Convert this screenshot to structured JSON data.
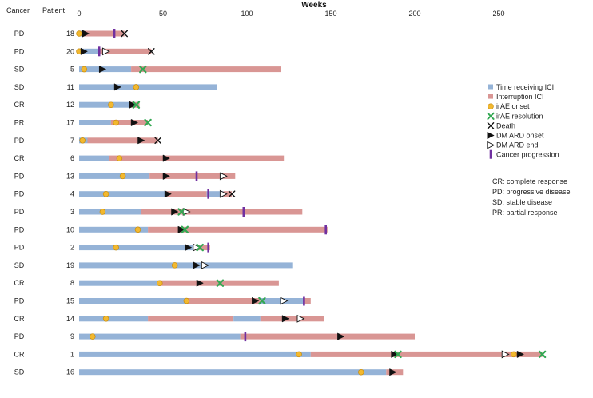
{
  "chart_data": {
    "type": "bar",
    "title": "Weeks",
    "col_cancer": "Cancer",
    "col_patient": "Patient",
    "xlim": [
      0,
      300
    ],
    "xticks": [
      0,
      50,
      100,
      150,
      200,
      250
    ],
    "colors": {
      "ici": "#95b3d7",
      "interruption": "#d99694",
      "irae_onset": "#f2b82f",
      "irae_onset_edge": "#c98c0a",
      "irae_resolution": "#33a853",
      "death": "#111111",
      "dmard": "#111111",
      "progression": "#7030a0"
    },
    "legend": {
      "position": "right",
      "items": [
        {
          "key": "ici",
          "label": "Time receiving ICI"
        },
        {
          "key": "interruption",
          "label": "Interruption ICI"
        },
        {
          "key": "irae_onset",
          "label": "irAE onset"
        },
        {
          "key": "irae_resolution",
          "label": "irAE resolution"
        },
        {
          "key": "death",
          "label": "Death"
        },
        {
          "key": "dmard_onset",
          "label": "DM ARD onset"
        },
        {
          "key": "dmard_end",
          "label": "DM ARD end"
        },
        {
          "key": "progression",
          "label": "Cancer progression"
        }
      ]
    },
    "abbreviations": [
      "CR: complete response",
      "PD: progressive disease",
      "SD: stable disease",
      "PR: partial response"
    ],
    "patients": [
      {
        "cancer": "PD",
        "patient": "18",
        "segments": [
          [
            "ici",
            0,
            3
          ],
          [
            "int",
            3,
            27
          ]
        ],
        "irae_onset": [
          0
        ],
        "irae_resolution": [],
        "dmard_onset": [
          4
        ],
        "dmard_end": [],
        "progression": [
          21
        ],
        "death": [
          27
        ]
      },
      {
        "cancer": "PD",
        "patient": "20",
        "segments": [
          [
            "ici",
            0,
            3
          ],
          [
            "ici",
            3,
            12
          ],
          [
            "int",
            12,
            43
          ]
        ],
        "irae_onset": [
          0
        ],
        "irae_resolution": [],
        "dmard_onset": [
          3
        ],
        "dmard_end": [
          16
        ],
        "progression": [
          12
        ],
        "death": [
          43
        ]
      },
      {
        "cancer": "SD",
        "patient": "5",
        "segments": [
          [
            "ici",
            0,
            31
          ],
          [
            "int",
            31,
            120
          ]
        ],
        "irae_onset": [
          3
        ],
        "irae_resolution": [
          38
        ],
        "dmard_onset": [
          14
        ],
        "dmard_end": [],
        "progression": [],
        "death": []
      },
      {
        "cancer": "SD",
        "patient": "11",
        "segments": [
          [
            "ici",
            0,
            82
          ]
        ],
        "irae_onset": [
          34
        ],
        "irae_resolution": [],
        "dmard_onset": [
          23
        ],
        "dmard_end": [],
        "progression": [],
        "death": []
      },
      {
        "cancer": "CR",
        "patient": "12",
        "segments": [
          [
            "ici",
            0,
            30
          ],
          [
            "int",
            30,
            36
          ]
        ],
        "irae_onset": [
          19
        ],
        "irae_resolution": [
          34
        ],
        "dmard_onset": [
          32
        ],
        "dmard_end": [],
        "progression": [],
        "death": []
      },
      {
        "cancer": "PR",
        "patient": "17",
        "segments": [
          [
            "ici",
            0,
            19
          ],
          [
            "int",
            19,
            41
          ]
        ],
        "irae_onset": [
          22
        ],
        "irae_resolution": [
          41
        ],
        "dmard_onset": [
          33
        ],
        "dmard_end": [],
        "progression": [],
        "death": []
      },
      {
        "cancer": "PD",
        "patient": "7",
        "segments": [
          [
            "ici",
            0,
            5
          ],
          [
            "int",
            5,
            47
          ]
        ],
        "irae_onset": [
          2
        ],
        "irae_resolution": [],
        "dmard_onset": [
          37
        ],
        "dmard_end": [],
        "progression": [],
        "death": [
          47
        ]
      },
      {
        "cancer": "CR",
        "patient": "6",
        "segments": [
          [
            "ici",
            0,
            18
          ],
          [
            "int",
            18,
            122
          ]
        ],
        "irae_onset": [
          24
        ],
        "irae_resolution": [],
        "dmard_onset": [
          52
        ],
        "dmard_end": [],
        "progression": [],
        "death": []
      },
      {
        "cancer": "PD",
        "patient": "13",
        "segments": [
          [
            "ici",
            0,
            42
          ],
          [
            "int",
            42,
            93
          ]
        ],
        "irae_onset": [
          26
        ],
        "irae_resolution": [],
        "dmard_onset": [
          52
        ],
        "dmard_end": [
          86
        ],
        "progression": [
          70
        ],
        "death": []
      },
      {
        "cancer": "PD",
        "patient": "4",
        "segments": [
          [
            "ici",
            0,
            51
          ],
          [
            "int",
            51,
            76
          ],
          [
            "ici",
            76,
            86
          ],
          [
            "int",
            86,
            91
          ]
        ],
        "irae_onset": [
          16
        ],
        "irae_resolution": [],
        "dmard_onset": [
          53
        ],
        "dmard_end": [
          86
        ],
        "progression": [
          77
        ],
        "death": [
          91
        ]
      },
      {
        "cancer": "PD",
        "patient": "3",
        "segments": [
          [
            "ici",
            0,
            37
          ],
          [
            "int",
            37,
            133
          ]
        ],
        "irae_onset": [
          14
        ],
        "irae_resolution": [
          61
        ],
        "dmard_onset": [
          57
        ],
        "dmard_end": [
          64
        ],
        "progression": [
          98
        ],
        "death": []
      },
      {
        "cancer": "PD",
        "patient": "10",
        "segments": [
          [
            "ici",
            0,
            41
          ],
          [
            "int",
            41,
            148
          ]
        ],
        "irae_onset": [
          35
        ],
        "irae_resolution": [
          63
        ],
        "dmard_onset": [
          61
        ],
        "dmard_end": [],
        "progression": [
          147
        ],
        "death": []
      },
      {
        "cancer": "PD",
        "patient": "2",
        "segments": [
          [
            "ici",
            0,
            69
          ],
          [
            "int",
            69,
            78
          ]
        ],
        "irae_onset": [
          22
        ],
        "irae_resolution": [
          72
        ],
        "dmard_onset": [
          65
        ],
        "dmard_end": [
          70
        ],
        "progression": [
          77
        ],
        "death": []
      },
      {
        "cancer": "SD",
        "patient": "19",
        "segments": [
          [
            "ici",
            0,
            127
          ]
        ],
        "irae_onset": [
          57
        ],
        "irae_resolution": [],
        "dmard_onset": [
          70
        ],
        "dmard_end": [
          75
        ],
        "progression": [],
        "death": []
      },
      {
        "cancer": "CR",
        "patient": "8",
        "segments": [
          [
            "ici",
            0,
            49
          ],
          [
            "int",
            49,
            119
          ]
        ],
        "irae_onset": [
          48
        ],
        "irae_resolution": [
          84
        ],
        "dmard_onset": [
          72
        ],
        "dmard_end": [],
        "progression": [],
        "death": []
      },
      {
        "cancer": "PD",
        "patient": "15",
        "segments": [
          [
            "ici",
            0,
            65
          ],
          [
            "int",
            65,
            108
          ],
          [
            "ici",
            108,
            134
          ],
          [
            "int",
            134,
            138
          ]
        ],
        "irae_onset": [
          64
        ],
        "irae_resolution": [
          109
        ],
        "dmard_onset": [
          105
        ],
        "dmard_end": [
          122
        ],
        "progression": [
          134
        ],
        "death": []
      },
      {
        "cancer": "CR",
        "patient": "14",
        "segments": [
          [
            "ici",
            0,
            41
          ],
          [
            "int",
            41,
            92
          ],
          [
            "ici",
            92,
            108
          ],
          [
            "int",
            108,
            146
          ]
        ],
        "irae_onset": [
          16
        ],
        "irae_resolution": [],
        "dmard_onset": [
          123
        ],
        "dmard_end": [
          132
        ],
        "progression": [],
        "death": []
      },
      {
        "cancer": "PD",
        "patient": "9",
        "segments": [
          [
            "ici",
            0,
            96
          ],
          [
            "int",
            96,
            200
          ]
        ],
        "irae_onset": [
          8
        ],
        "irae_resolution": [],
        "dmard_onset": [
          156
        ],
        "dmard_end": [],
        "progression": [
          99
        ],
        "death": []
      },
      {
        "cancer": "CR",
        "patient": "1",
        "segments": [
          [
            "ici",
            0,
            138
          ],
          [
            "int",
            138,
            276
          ]
        ],
        "irae_onset": [
          131,
          259
        ],
        "irae_resolution": [
          190,
          276
        ],
        "dmard_onset": [
          188,
          263
        ],
        "dmard_end": [
          254
        ],
        "progression": [],
        "death": []
      },
      {
        "cancer": "SD",
        "patient": "16",
        "segments": [
          [
            "ici",
            0,
            183
          ],
          [
            "int",
            183,
            193
          ]
        ],
        "irae_onset": [
          168
        ],
        "irae_resolution": [],
        "dmard_onset": [
          187
        ],
        "dmard_end": [],
        "progression": [],
        "death": []
      }
    ]
  }
}
